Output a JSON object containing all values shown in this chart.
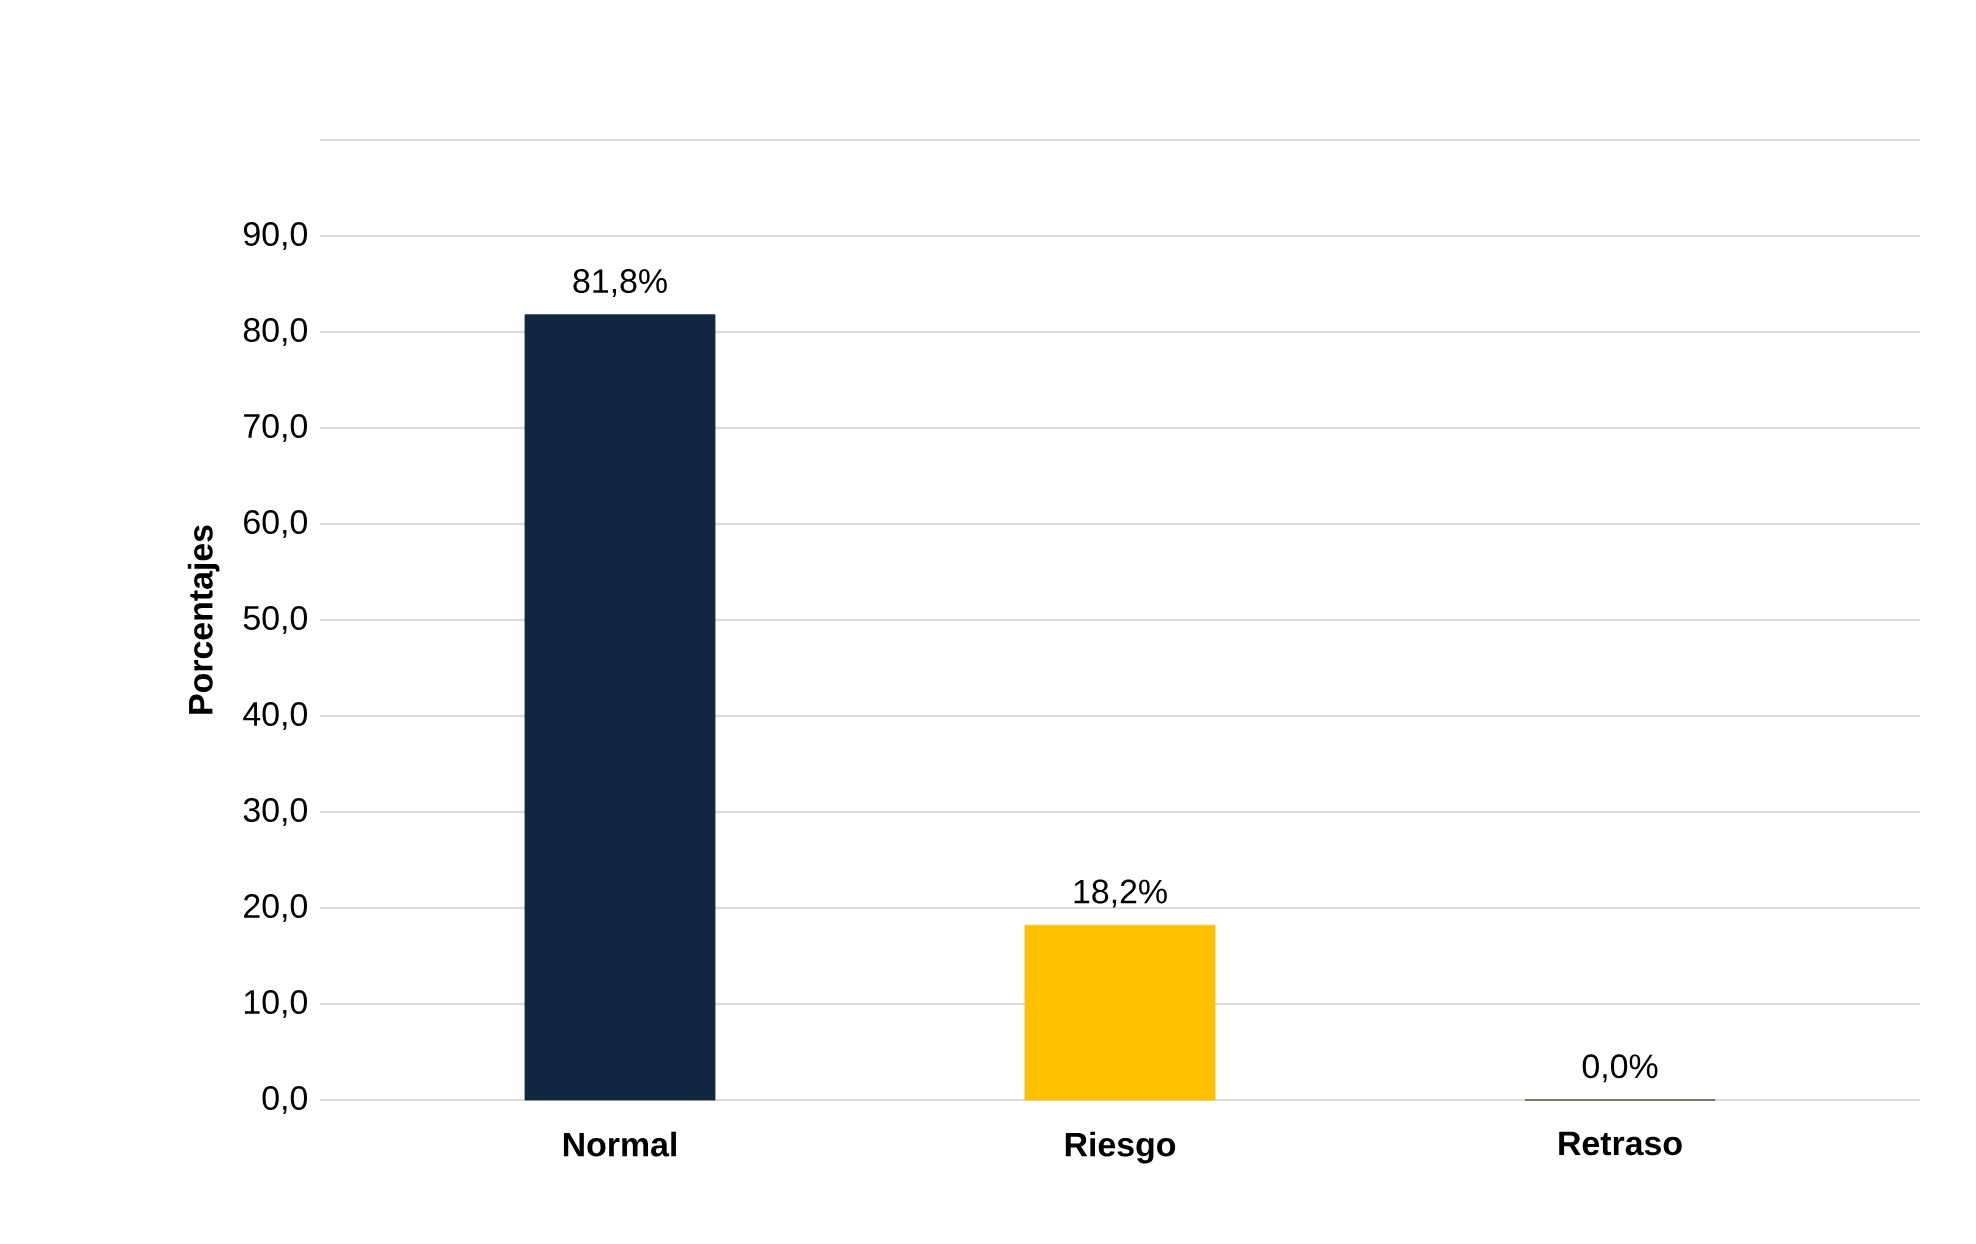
{
  "chart_data": {
    "type": "bar",
    "ylabel": "Porcentajes",
    "categories": [
      "Normal",
      "Riesgo",
      "Retraso"
    ],
    "values": [
      81.8,
      18.2,
      0.0
    ],
    "colors": [
      "#12263f",
      "#ffc000",
      "#3b4a1f"
    ],
    "value_labels": [
      "81,8%",
      "18,2%",
      "0,0%"
    ],
    "ylim": [
      0,
      100
    ],
    "yticks": [
      {
        "value": 0,
        "label": "0,0"
      },
      {
        "value": 10,
        "label": "10,0"
      },
      {
        "value": 20,
        "label": "20,0"
      },
      {
        "value": 30,
        "label": "30,0"
      },
      {
        "value": 40,
        "label": "40,0"
      },
      {
        "value": 50,
        "label": "50,0"
      },
      {
        "value": 60,
        "label": "60,0"
      },
      {
        "value": 70,
        "label": "70,0"
      },
      {
        "value": 80,
        "label": "80,0"
      },
      {
        "value": 90,
        "label": "90,0"
      },
      {
        "value": 100,
        "label": null
      }
    ],
    "grid": "y"
  }
}
